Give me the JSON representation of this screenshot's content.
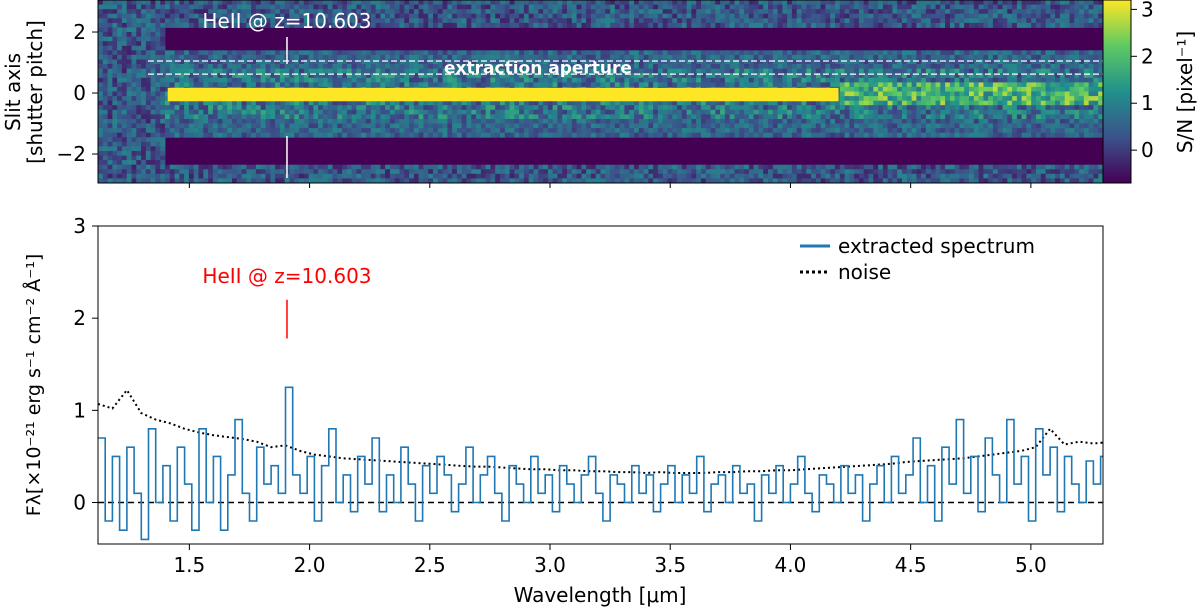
{
  "chart_data": [
    {
      "type": "heatmap",
      "title": "",
      "xlabel": "",
      "ylabel": [
        "Slit axis",
        "[shutter pitch]"
      ],
      "xlim": [
        1.12,
        5.3
      ],
      "ylim": [
        -2.95,
        3.05
      ],
      "yticks": [
        -2,
        0,
        2
      ],
      "ytick_labels": [
        "−2",
        "0",
        "2"
      ],
      "colormap": "viridis",
      "colorbar": {
        "label": "S/N [pixel⁻¹]",
        "range": [
          -0.7,
          3.2
        ],
        "ticks": [
          0,
          1,
          2,
          3
        ],
        "tick_labels": [
          "0",
          "1",
          "2",
          "3"
        ]
      },
      "trace": {
        "y_center": -0.05,
        "x_start": 1.41,
        "x_end": 5.05,
        "bright_until": 4.2
      },
      "aperture": {
        "y_low": 0.62,
        "y_high": 1.05,
        "label": "extraction aperture"
      },
      "annotation": {
        "text": "HeII @ z=10.603",
        "x": 1.906
      }
    },
    {
      "type": "line",
      "title": "",
      "xlabel": "Wavelength [μm]",
      "ylabel": "Fλ[×10⁻²¹ erg s⁻¹ cm⁻² Å⁻¹]",
      "xlim": [
        1.12,
        5.3
      ],
      "ylim": [
        -0.45,
        3.0
      ],
      "xticks": [
        1.5,
        2.0,
        2.5,
        3.0,
        3.5,
        4.0,
        4.5,
        5.0
      ],
      "xtick_labels": [
        "1.5",
        "2.0",
        "2.5",
        "3.0",
        "3.5",
        "4.0",
        "4.5",
        "5.0"
      ],
      "yticks": [
        0,
        1,
        2,
        3
      ],
      "ytick_labels": [
        "0",
        "1",
        "2",
        "3"
      ],
      "grid": false,
      "legend": "top-right",
      "reference_line": {
        "y": 0,
        "style": "dashed"
      },
      "annotation": {
        "text": "HeII @ z=10.603",
        "x": 1.906,
        "line_from": 1.78,
        "line_to": 2.2
      },
      "series": [
        {
          "name": "extracted spectrum",
          "style": "steps",
          "color": "#1f77b4",
          "x": [
            1.12,
            1.15,
            1.18,
            1.21,
            1.24,
            1.27,
            1.3,
            1.33,
            1.36,
            1.39,
            1.42,
            1.45,
            1.48,
            1.51,
            1.54,
            1.57,
            1.6,
            1.63,
            1.66,
            1.69,
            1.72,
            1.75,
            1.78,
            1.81,
            1.84,
            1.87,
            1.9,
            1.93,
            1.96,
            1.99,
            2.02,
            2.05,
            2.08,
            2.11,
            2.14,
            2.17,
            2.2,
            2.23,
            2.26,
            2.29,
            2.32,
            2.35,
            2.38,
            2.41,
            2.44,
            2.47,
            2.5,
            2.53,
            2.56,
            2.59,
            2.62,
            2.65,
            2.68,
            2.71,
            2.74,
            2.77,
            2.8,
            2.83,
            2.86,
            2.89,
            2.92,
            2.95,
            2.98,
            3.01,
            3.04,
            3.07,
            3.1,
            3.13,
            3.16,
            3.19,
            3.22,
            3.25,
            3.28,
            3.31,
            3.34,
            3.37,
            3.4,
            3.43,
            3.46,
            3.49,
            3.52,
            3.55,
            3.58,
            3.61,
            3.64,
            3.67,
            3.7,
            3.73,
            3.76,
            3.79,
            3.82,
            3.85,
            3.88,
            3.91,
            3.94,
            3.97,
            4.0,
            4.03,
            4.06,
            4.09,
            4.12,
            4.15,
            4.18,
            4.21,
            4.24,
            4.27,
            4.3,
            4.33,
            4.36,
            4.39,
            4.42,
            4.45,
            4.48,
            4.51,
            4.54,
            4.57,
            4.6,
            4.63,
            4.66,
            4.69,
            4.72,
            4.75,
            4.78,
            4.81,
            4.84,
            4.87,
            4.9,
            4.93,
            4.96,
            4.99,
            5.02,
            5.05,
            5.08,
            5.11,
            5.14,
            5.17,
            5.2,
            5.23,
            5.26,
            5.29
          ],
          "y": [
            0.7,
            -0.2,
            0.5,
            -0.3,
            0.6,
            0.1,
            -0.4,
            0.8,
            0.0,
            0.4,
            -0.2,
            0.6,
            0.2,
            -0.3,
            0.8,
            0.0,
            0.5,
            -0.3,
            0.3,
            0.9,
            0.1,
            -0.2,
            0.6,
            0.2,
            0.4,
            0.1,
            1.25,
            0.3,
            0.1,
            0.5,
            -0.2,
            0.4,
            0.8,
            0.0,
            0.3,
            -0.1,
            0.5,
            0.2,
            0.7,
            -0.1,
            0.3,
            0.0,
            0.6,
            0.2,
            -0.2,
            0.4,
            0.1,
            0.5,
            0.3,
            -0.1,
            0.2,
            0.6,
            0.0,
            0.3,
            0.5,
            0.1,
            -0.2,
            0.4,
            0.2,
            0.0,
            0.5,
            0.1,
            0.3,
            -0.1,
            0.4,
            0.2,
            0.0,
            0.3,
            0.5,
            0.1,
            -0.2,
            0.3,
            0.2,
            0.0,
            0.4,
            0.1,
            0.3,
            -0.1,
            0.2,
            0.4,
            0.0,
            0.3,
            0.1,
            0.5,
            -0.1,
            0.2,
            0.3,
            0.0,
            0.4,
            0.1,
            0.2,
            -0.2,
            0.3,
            0.1,
            0.4,
            0.0,
            0.2,
            0.5,
            0.1,
            -0.1,
            0.3,
            0.2,
            0.0,
            0.4,
            0.1,
            0.3,
            -0.2,
            0.2,
            0.4,
            0.0,
            0.5,
            0.1,
            0.3,
            0.7,
            0.0,
            0.4,
            -0.2,
            0.6,
            0.2,
            0.9,
            0.1,
            0.5,
            -0.1,
            0.7,
            0.3,
            0.0,
            0.9,
            0.2,
            0.5,
            -0.2,
            0.8,
            0.3,
            0.6,
            -0.1,
            0.5,
            0.2,
            0.0,
            0.45,
            0.2,
            0.5
          ]
        },
        {
          "name": "noise",
          "style": "dotted",
          "color": "#000000",
          "x": [
            1.12,
            1.18,
            1.24,
            1.3,
            1.36,
            1.42,
            1.48,
            1.54,
            1.6,
            1.66,
            1.72,
            1.78,
            1.84,
            1.9,
            1.96,
            2.02,
            2.08,
            2.14,
            2.2,
            2.26,
            2.32,
            2.38,
            2.44,
            2.5,
            2.56,
            2.62,
            2.68,
            2.74,
            2.8,
            2.86,
            2.92,
            2.98,
            3.04,
            3.1,
            3.16,
            3.22,
            3.28,
            3.34,
            3.4,
            3.46,
            3.52,
            3.58,
            3.64,
            3.7,
            3.76,
            3.82,
            3.88,
            3.94,
            4.0,
            4.06,
            4.12,
            4.18,
            4.24,
            4.3,
            4.36,
            4.42,
            4.48,
            4.54,
            4.6,
            4.66,
            4.72,
            4.78,
            4.84,
            4.9,
            4.96,
            5.02,
            5.08,
            5.14,
            5.2,
            5.26,
            5.3
          ],
          "y": [
            1.07,
            1.02,
            1.22,
            0.97,
            0.9,
            0.86,
            0.8,
            0.76,
            0.73,
            0.71,
            0.69,
            0.66,
            0.6,
            0.62,
            0.56,
            0.52,
            0.5,
            0.48,
            0.47,
            0.46,
            0.45,
            0.44,
            0.43,
            0.42,
            0.41,
            0.4,
            0.39,
            0.39,
            0.38,
            0.37,
            0.36,
            0.36,
            0.35,
            0.35,
            0.34,
            0.34,
            0.33,
            0.33,
            0.32,
            0.33,
            0.32,
            0.32,
            0.32,
            0.33,
            0.33,
            0.34,
            0.34,
            0.35,
            0.35,
            0.36,
            0.37,
            0.38,
            0.39,
            0.4,
            0.41,
            0.42,
            0.44,
            0.45,
            0.46,
            0.47,
            0.48,
            0.5,
            0.52,
            0.54,
            0.56,
            0.6,
            0.8,
            0.63,
            0.66,
            0.64,
            0.65
          ]
        }
      ]
    }
  ]
}
